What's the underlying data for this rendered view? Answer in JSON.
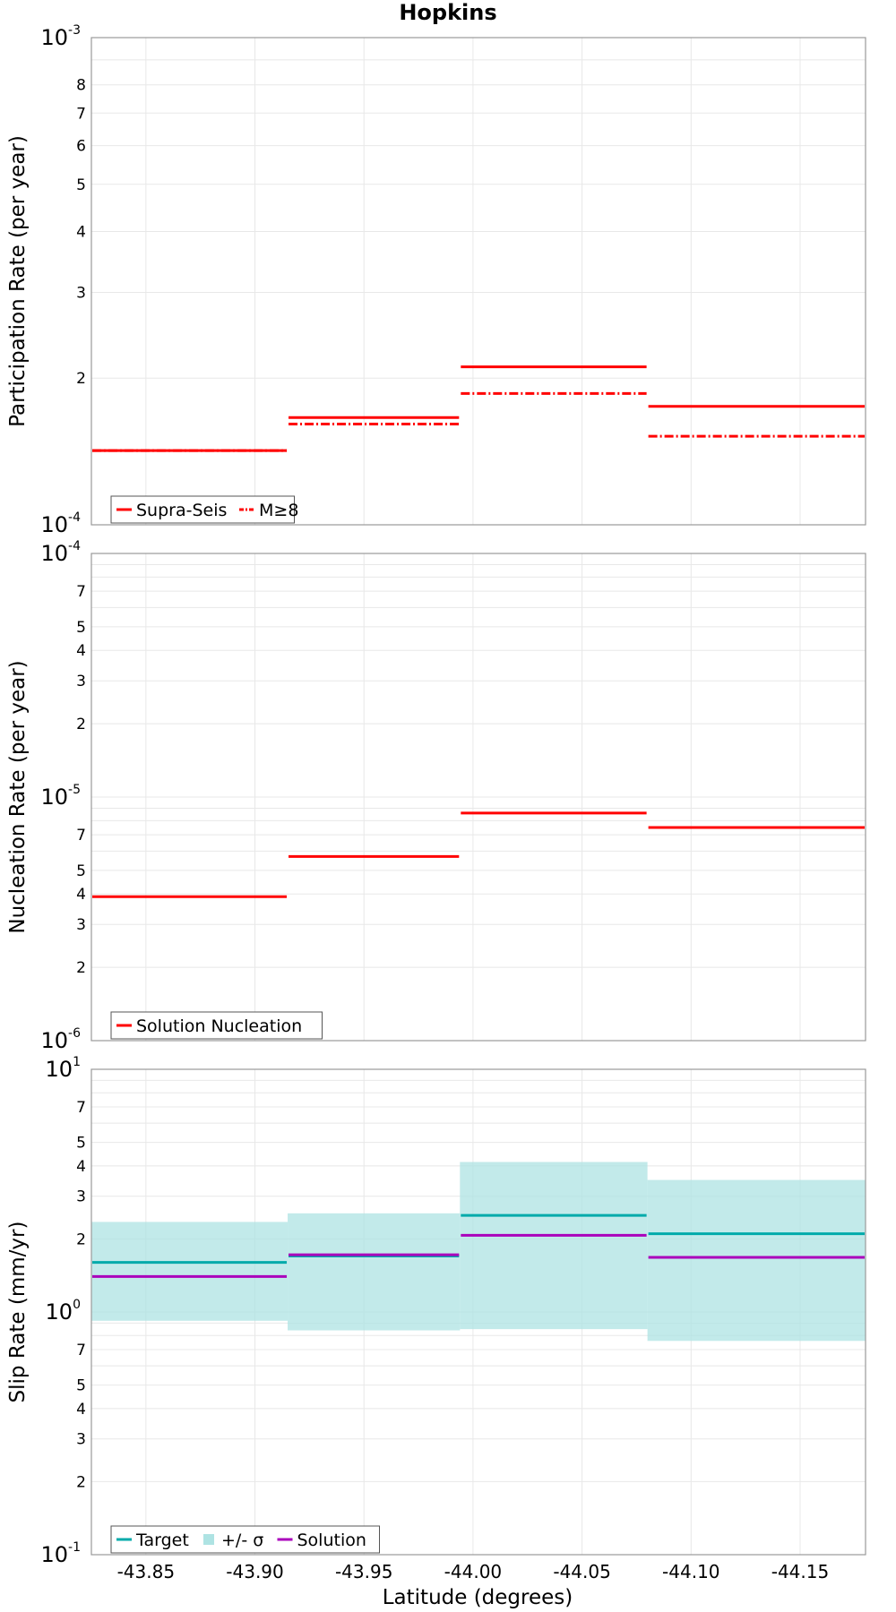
{
  "chart_data": {
    "type": "line",
    "title": "Hopkins",
    "xlabel": "Latitude (degrees)",
    "xlim": [
      -43.825,
      -44.18
    ],
    "x_ticks": [
      "-43.85",
      "-43.90",
      "-43.95",
      "-44.00",
      "-44.05",
      "-44.10",
      "-44.15"
    ],
    "x_tick_values": [
      -43.85,
      -43.9,
      -43.95,
      -44.0,
      -44.05,
      -44.1,
      -44.15
    ],
    "grid": true,
    "panels": [
      {
        "ylabel": "Participation Rate (per year)",
        "yscale": "log",
        "ylim": [
          0.0001,
          0.001
        ],
        "series": [
          {
            "name": "Supra-Seis",
            "color": "#ff0000",
            "style": "solid",
            "segments": [
              {
                "x": [
                  -43.825,
                  -43.915
                ],
                "y": 0.000142
              },
              {
                "x": [
                  -43.915,
                  -43.994
                ],
                "y": 0.000166
              },
              {
                "x": [
                  -43.994,
                  -44.08
                ],
                "y": 0.000211
              },
              {
                "x": [
                  -44.08,
                  -44.18
                ],
                "y": 0.000175
              }
            ]
          },
          {
            "name": "M≥8",
            "color": "#ff0000",
            "style": "dashdot",
            "segments": [
              {
                "x": [
                  -43.825,
                  -43.915
                ],
                "y": 0.000142
              },
              {
                "x": [
                  -43.915,
                  -43.994
                ],
                "y": 0.000161
              },
              {
                "x": [
                  -43.994,
                  -44.08
                ],
                "y": 0.000186
              },
              {
                "x": [
                  -44.08,
                  -44.18
                ],
                "y": 0.000152
              }
            ]
          }
        ],
        "legend_position": "bottom-left"
      },
      {
        "ylabel": "Nucleation Rate (per year)",
        "yscale": "log",
        "ylim": [
          1e-06,
          0.0001
        ],
        "series": [
          {
            "name": "Solution Nucleation",
            "color": "#ff0000",
            "style": "solid",
            "segments": [
              {
                "x": [
                  -43.825,
                  -43.915
                ],
                "y": 3.9e-06
              },
              {
                "x": [
                  -43.915,
                  -43.994
                ],
                "y": 5.7e-06
              },
              {
                "x": [
                  -43.994,
                  -44.08
                ],
                "y": 8.6e-06
              },
              {
                "x": [
                  -44.08,
                  -44.18
                ],
                "y": 7.5e-06
              }
            ]
          }
        ],
        "legend_position": "bottom-left"
      },
      {
        "ylabel": "Slip Rate (mm/yr)",
        "yscale": "log",
        "ylim": [
          0.1,
          10
        ],
        "series": [
          {
            "name": "Target",
            "color": "#00aaaa",
            "style": "solid",
            "segments": [
              {
                "x": [
                  -43.825,
                  -43.915
                ],
                "y": 1.6
              },
              {
                "x": [
                  -43.915,
                  -43.994
                ],
                "y": 1.7
              },
              {
                "x": [
                  -43.994,
                  -44.08
                ],
                "y": 2.5
              },
              {
                "x": [
                  -44.08,
                  -44.18
                ],
                "y": 2.1
              }
            ]
          },
          {
            "name": "+/- σ",
            "color": "#aee3e3",
            "style": "band",
            "segments": [
              {
                "x": [
                  -43.825,
                  -43.915
                ],
                "low": 0.92,
                "high": 2.35
              },
              {
                "x": [
                  -43.915,
                  -43.994
                ],
                "low": 0.84,
                "high": 2.55
              },
              {
                "x": [
                  -43.994,
                  -44.08
                ],
                "low": 0.85,
                "high": 4.15
              },
              {
                "x": [
                  -44.08,
                  -44.18
                ],
                "low": 0.76,
                "high": 3.5
              }
            ]
          },
          {
            "name": "Solution",
            "color": "#aa00bb",
            "style": "solid",
            "segments": [
              {
                "x": [
                  -43.825,
                  -43.915
                ],
                "y": 1.4
              },
              {
                "x": [
                  -43.915,
                  -43.994
                ],
                "y": 1.72
              },
              {
                "x": [
                  -43.994,
                  -44.08
                ],
                "y": 2.07
              },
              {
                "x": [
                  -44.08,
                  -44.18
                ],
                "y": 1.68
              }
            ]
          }
        ],
        "legend_position": "bottom-left"
      }
    ]
  }
}
